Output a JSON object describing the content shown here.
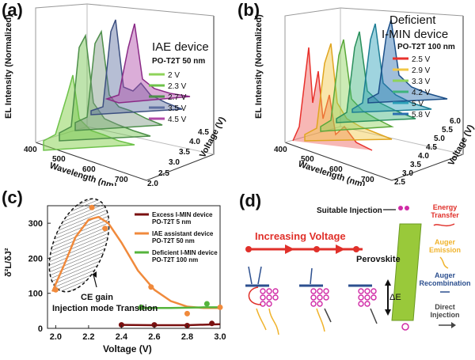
{
  "panels": {
    "a": {
      "label": "(a)",
      "title": "IAE device",
      "subtitle": "PO-T2T 50 nm",
      "ylabel": "EL Intensity (Normalized)",
      "xlabel": "Wavelength (nm)",
      "zlabel": "Voltage (V)",
      "x_ticks": [
        "400",
        "500",
        "600",
        "700"
      ],
      "z_ticks": [
        "2.0",
        "2.5",
        "3.0",
        "3.5",
        "4.0",
        "4.5"
      ],
      "legend": [
        {
          "label": "2 V",
          "color": "#8ed35a"
        },
        {
          "label": "2.3 V",
          "color": "#6ec24a"
        },
        {
          "label": "2.7 V",
          "color": "#4e8f4a"
        },
        {
          "label": "3.5 V",
          "color": "#5d6fa0"
        },
        {
          "label": "4.5 V",
          "color": "#b04aa8"
        }
      ]
    },
    "b": {
      "label": "(b)",
      "title_line1": "Deficient",
      "title_line2": "I-MIN device",
      "subtitle": "PO-T2T 100 nm",
      "ylabel": "EL Intensity (Normalized)",
      "xlabel": "Wavelength (nm)",
      "zlabel": "Voltage (V)",
      "x_ticks": [
        "400",
        "500",
        "600",
        "700"
      ],
      "z_ticks": [
        "2.5",
        "3.0",
        "3.5",
        "4.0",
        "4.5",
        "5.0",
        "5.5",
        "6.0"
      ],
      "legend": [
        {
          "label": "2.5 V",
          "color": "#e8312c"
        },
        {
          "label": "2.9 V",
          "color": "#f2c744"
        },
        {
          "label": "3.3 V",
          "color": "#8ed35a"
        },
        {
          "label": "4.2 V",
          "color": "#3fb37c"
        },
        {
          "label": "5 V",
          "color": "#2b9fb8"
        },
        {
          "label": "5.8 V",
          "color": "#2a6fb0"
        }
      ]
    },
    "c": {
      "label": "(c)",
      "annotation_line1": "CE gain",
      "annotation_line2": "Injection mode Transition"
    },
    "d": {
      "label": "(d)",
      "suitable_injection": "Suitable Injection",
      "increasing_voltage": "Increasing Voltage",
      "perovskite": "Perovskite",
      "delta_e": "ΔE",
      "legend": [
        {
          "label_line1": "Energy",
          "label_line2": "Transfer",
          "color": "#e0302a"
        },
        {
          "label_line1": "Auger",
          "label_line2": "Emission",
          "color": "#f0b32c"
        },
        {
          "label_line1": "Auger",
          "label_line2": "Recombination",
          "color": "#2c4f8f"
        },
        {
          "label_line1": "Direct",
          "label_line2": "Injection",
          "color": "#444444"
        }
      ]
    }
  },
  "chart_data": {
    "type": "scatter",
    "title": "",
    "xlabel": "Voltage (V)",
    "ylabel": "δ²L/δJ²",
    "xlim": [
      1.95,
      3.0
    ],
    "ylim": [
      0,
      350
    ],
    "x_ticks": [
      "2.0",
      "2.2",
      "2.4",
      "2.6",
      "2.8",
      "3.0"
    ],
    "y_ticks": [
      "0",
      "100",
      "200",
      "300"
    ],
    "legend_position": "top-right",
    "series": [
      {
        "name": "Excess I-MIN device",
        "name_line2": "PO-T2T 5 nm",
        "color": "#7a1010",
        "points": [
          [
            2.4,
            10
          ],
          [
            2.6,
            10
          ],
          [
            2.8,
            8
          ],
          [
            2.95,
            14
          ]
        ],
        "curve": [
          [
            2.4,
            10
          ],
          [
            2.6,
            9
          ],
          [
            2.8,
            9
          ],
          [
            3.0,
            12
          ]
        ]
      },
      {
        "name": "IAE assistant device",
        "name_line2": "PO-T2T 50 nm",
        "color": "#f08a3c",
        "points": [
          [
            2.0,
            110
          ],
          [
            2.22,
            345
          ],
          [
            2.3,
            285
          ],
          [
            2.58,
            118
          ],
          [
            2.8,
            42
          ],
          [
            3.0,
            60
          ]
        ],
        "curve": [
          [
            1.98,
            105
          ],
          [
            2.05,
            180
          ],
          [
            2.12,
            260
          ],
          [
            2.2,
            310
          ],
          [
            2.26,
            318
          ],
          [
            2.32,
            300
          ],
          [
            2.4,
            245
          ],
          [
            2.5,
            165
          ],
          [
            2.6,
            110
          ],
          [
            2.7,
            78
          ],
          [
            2.8,
            62
          ],
          [
            2.9,
            58
          ],
          [
            3.0,
            58
          ]
        ]
      },
      {
        "name": "Deficient I-MIN device",
        "name_line2": "PO-T2T 100 nm",
        "color": "#55b43c",
        "points": [
          [
            2.52,
            60
          ],
          [
            2.92,
            70
          ]
        ],
        "curve": [
          [
            2.5,
            58
          ],
          [
            2.7,
            58
          ],
          [
            2.9,
            60
          ],
          [
            3.0,
            60
          ]
        ]
      }
    ]
  }
}
